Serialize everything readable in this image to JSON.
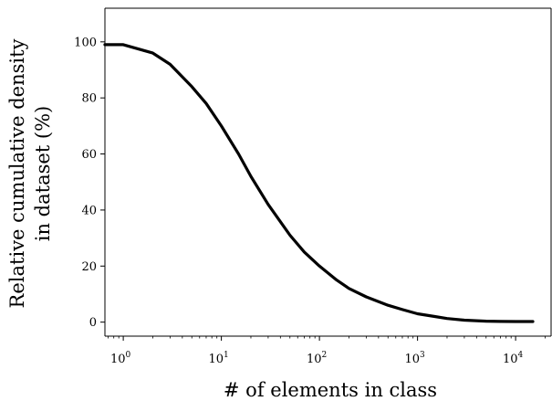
{
  "chart_data": {
    "type": "line",
    "title": "",
    "xlabel": "# of elements in class",
    "ylabel_lines": [
      "Relative cumulative density",
      "in dataset (%)"
    ],
    "x_scale": "log",
    "xlim": [
      0.65,
      23000
    ],
    "ylim": [
      -5,
      112
    ],
    "grid": false,
    "x_ticks": [
      {
        "value": 1,
        "base": "10",
        "exp": "0"
      },
      {
        "value": 10,
        "base": "10",
        "exp": "1"
      },
      {
        "value": 100,
        "base": "10",
        "exp": "2"
      },
      {
        "value": 1000,
        "base": "10",
        "exp": "3"
      },
      {
        "value": 10000,
        "base": "10",
        "exp": "4"
      }
    ],
    "y_ticks": [
      0,
      20,
      40,
      60,
      80,
      100
    ],
    "series": [
      {
        "color": "#000000",
        "x": [
          0.65,
          1,
          2,
          3,
          5,
          7,
          10,
          15,
          20,
          30,
          50,
          70,
          100,
          150,
          200,
          300,
          500,
          700,
          1000,
          1500,
          2000,
          3000,
          5000,
          7000,
          10000,
          15000
        ],
        "y": [
          99,
          99,
          96,
          92,
          84,
          78,
          70,
          60,
          52,
          42,
          31,
          25,
          20,
          15,
          12,
          9,
          6,
          4.5,
          3,
          2,
          1.3,
          0.7,
          0.35,
          0.25,
          0.2,
          0.2
        ]
      }
    ]
  }
}
